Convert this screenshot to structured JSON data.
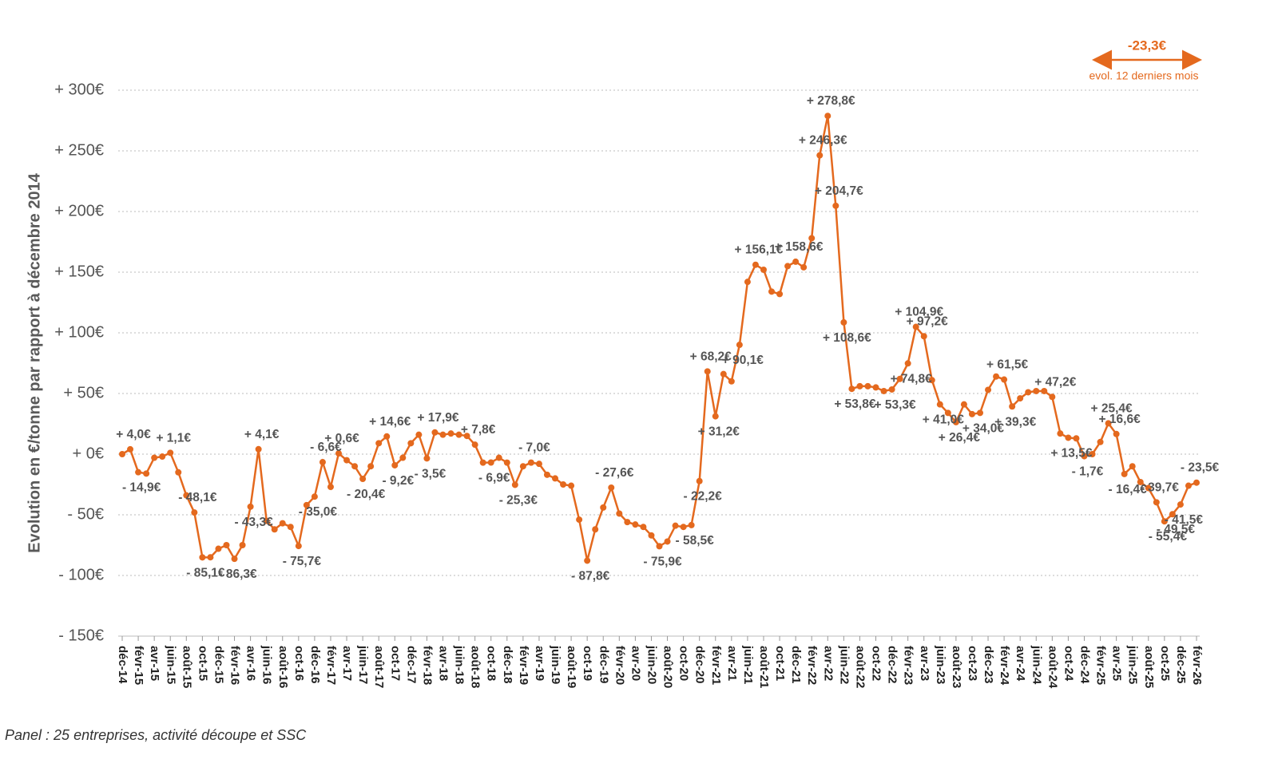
{
  "chart_data": {
    "type": "line",
    "y_label": "Evolution en €/tonne par rapport à décembre 2014",
    "footnote": "Panel : 25 entreprises, activité découpe et SSC",
    "annotations": [
      "-23,3€",
      "evol. 12 derniers mois"
    ],
    "ylim": [
      -150,
      300
    ],
    "yticks": [
      {
        "value": 300,
        "label": "+ 300€"
      },
      {
        "value": 250,
        "label": "+ 250€"
      },
      {
        "value": 200,
        "label": "+ 200€"
      },
      {
        "value": 150,
        "label": "+ 150€"
      },
      {
        "value": 100,
        "label": "+ 100€"
      },
      {
        "value": 50,
        "label": "+ 50€"
      },
      {
        "value": 0,
        "label": "+ 0€"
      },
      {
        "value": -50,
        "label": "- 50€"
      },
      {
        "value": -100,
        "label": "- 100€"
      },
      {
        "value": -150,
        "label": "- 150€"
      }
    ],
    "grid": true,
    "color": "#e4691e",
    "categories": [
      "déc-14",
      null,
      "févr-15",
      null,
      "avr-15",
      null,
      "juin-15",
      null,
      "août-15",
      null,
      "oct-15",
      null,
      "déc-15",
      null,
      "févr-16",
      null,
      "avr-16",
      null,
      "juin-16",
      null,
      "août-16",
      null,
      "oct-16",
      null,
      "déc-16",
      null,
      "févr-17",
      null,
      "avr-17",
      null,
      "juin-17",
      null,
      "août-17",
      null,
      "oct-17",
      null,
      "déc-17",
      null,
      "févr-18",
      null,
      "avr-18",
      null,
      "juin-18",
      null,
      "août-18",
      null,
      "oct-18",
      null,
      "déc-18",
      null,
      "févr-19",
      null,
      "avr-19",
      null,
      "juin-19",
      null,
      "août-19",
      null,
      "oct-19",
      null,
      "déc-19",
      null,
      "févr-20",
      null,
      "avr-20",
      null,
      "juin-20",
      null,
      "août-20",
      null,
      "oct-20",
      null,
      "déc-20",
      null,
      "févr-21",
      null,
      "avr-21",
      null,
      "juin-21",
      null,
      "août-21",
      null,
      "oct-21",
      null,
      "déc-21",
      null,
      "févr-22",
      null,
      "avr-22",
      null,
      "juin-22",
      null,
      "août-22",
      null,
      "oct-22",
      null,
      "déc-22",
      null,
      "févr-23",
      null,
      "avr-23",
      null,
      "juin-23",
      null,
      "août-23",
      null,
      "oct-23",
      null,
      "déc-23",
      null,
      "févr-24",
      null,
      "avr-24",
      null,
      "juin-24",
      null,
      "août-24",
      null,
      "oct-24",
      null,
      "déc-24",
      null,
      "févr-25",
      null,
      "avr-25",
      null,
      "juin-25",
      null,
      "août-25",
      null,
      "oct-25",
      null,
      "déc-25",
      null,
      "févr-26"
    ],
    "values": [
      0,
      4.0,
      -14.9,
      -16,
      -3,
      -2,
      1.1,
      -15,
      -34,
      -48.1,
      -85.1,
      -85,
      -78,
      -75,
      -86.3,
      -75,
      -43.3,
      4.1,
      -55,
      -62,
      -57,
      -60,
      -75.7,
      -42,
      -35.0,
      -6.6,
      -27,
      0.6,
      -5,
      -10,
      -20.4,
      -10,
      9,
      14.6,
      -9.2,
      -3,
      9,
      16,
      -3.5,
      17.9,
      16,
      17,
      16,
      15,
      7.8,
      -7,
      -6.9,
      -3,
      -7,
      -25.3,
      -10,
      -7.0,
      -8,
      -17,
      -20,
      -25,
      -26,
      -54,
      -87.8,
      -62,
      -44,
      -27.6,
      -49,
      -56,
      -58,
      -60,
      -67,
      -75.9,
      -72,
      -59,
      -60,
      -58.5,
      -22.2,
      68.2,
      31.2,
      66,
      60,
      90.1,
      142,
      156.1,
      152,
      134,
      132,
      155,
      158.6,
      154,
      178,
      246.3,
      278.8,
      204.7,
      108.6,
      53.8,
      56,
      56,
      55,
      52,
      53.3,
      62,
      74.8,
      104.9,
      97.2,
      61,
      41.0,
      34,
      26.4,
      41,
      33,
      34.0,
      53,
      64,
      61.5,
      39.3,
      46,
      51,
      52,
      52,
      47.2,
      17,
      13.5,
      13,
      -1.7,
      0,
      10,
      25.4,
      16.6,
      -16.4,
      -10,
      -23,
      -28,
      -39.7,
      -55.4,
      -49.5,
      -41.5,
      -26,
      -23.5
    ],
    "value_labels": [
      null,
      "+ 4,0€",
      "- 14,9€",
      null,
      null,
      null,
      "+ 1,1€",
      null,
      null,
      "- 48,1€",
      "- 85,1€",
      null,
      null,
      null,
      "- 86,3€",
      null,
      "- 43,3€",
      "+ 4,1€",
      null,
      null,
      null,
      null,
      "- 75,7€",
      null,
      "- 35,0€",
      "- 6,6€",
      null,
      "+ 0,6€",
      null,
      null,
      "- 20,4€",
      null,
      null,
      "+ 14,6€",
      "- 9,2€",
      null,
      null,
      null,
      "- 3,5€",
      "+ 17,9€",
      null,
      null,
      null,
      null,
      "+ 7,8€",
      null,
      "- 6,9€",
      null,
      null,
      "- 25,3€",
      null,
      "- 7,0€",
      null,
      null,
      null,
      null,
      null,
      null,
      "- 87,8€",
      null,
      null,
      "- 27,6€",
      null,
      null,
      null,
      null,
      null,
      "- 75,9€",
      null,
      null,
      null,
      "- 58,5€",
      "- 22,2€",
      "+ 68,2€",
      "+ 31,2€",
      null,
      null,
      "+ 90,1€",
      null,
      "+ 156,1€",
      null,
      null,
      null,
      null,
      "+ 158,6€",
      null,
      null,
      "+ 246,3€",
      "+ 278,8€",
      "+ 204,7€",
      "+ 108,6€",
      "+ 53,8€",
      null,
      null,
      null,
      null,
      "+ 53,3€",
      null,
      "+ 74,8€",
      "+ 104,9€",
      "+ 97,2€",
      null,
      "+ 41,0€",
      null,
      "+ 26,4€",
      null,
      null,
      "+ 34,0€",
      null,
      null,
      "+ 61,5€",
      "+ 39,3€",
      null,
      null,
      null,
      null,
      "+ 47,2€",
      null,
      "+ 13,5€",
      null,
      "- 1,7€",
      null,
      null,
      "+ 25,4€",
      "+ 16,6€",
      "- 16,4€",
      null,
      null,
      null,
      "- 39,7€",
      "- 55,4€",
      "- 49,5€",
      "- 41,5€",
      null,
      "- 23,5€"
    ]
  }
}
